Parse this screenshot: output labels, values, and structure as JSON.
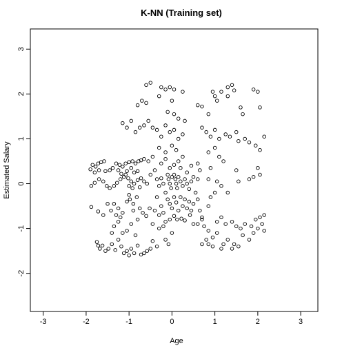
{
  "chart_data": {
    "type": "scatter",
    "title": "K-NN (Training set)",
    "xlabel": "Age",
    "ylabel": "Estimated Salary",
    "xlim": [
      -3.3,
      3.4
    ],
    "ylim": [
      -2.85,
      3.45
    ],
    "xticks": [
      -3,
      -2,
      -1,
      0,
      1,
      2,
      3
    ],
    "yticks": [
      -2,
      -1,
      0,
      1,
      2,
      3
    ],
    "xtick_labels": [
      "-3",
      "-2",
      "-1",
      "0",
      "1",
      "2",
      "3"
    ],
    "ytick_labels": [
      "-2",
      "-1",
      "0",
      "1",
      "2",
      "3"
    ],
    "grid": false,
    "marker": "open-circle",
    "points": [
      [
        -1.85,
        0.42
      ],
      [
        -1.78,
        0.38
      ],
      [
        -1.72,
        0.45
      ],
      [
        -1.65,
        0.48
      ],
      [
        -1.58,
        0.5
      ],
      [
        -1.9,
        0.32
      ],
      [
        -1.8,
        0.25
      ],
      [
        -1.7,
        0.3
      ],
      [
        -1.55,
        0.28
      ],
      [
        -1.45,
        0.3
      ],
      [
        -1.38,
        0.35
      ],
      [
        -1.3,
        0.45
      ],
      [
        -1.22,
        0.42
      ],
      [
        -1.15,
        0.38
      ],
      [
        -1.08,
        0.45
      ],
      [
        -1.0,
        0.48
      ],
      [
        -0.92,
        0.5
      ],
      [
        -0.85,
        0.45
      ],
      [
        -0.78,
        0.5
      ],
      [
        -0.72,
        0.52
      ],
      [
        -1.25,
        0.3
      ],
      [
        -1.18,
        0.22
      ],
      [
        -1.05,
        0.28
      ],
      [
        -0.95,
        0.35
      ],
      [
        -0.88,
        0.25
      ],
      [
        -0.8,
        0.28
      ],
      [
        -1.88,
        -0.05
      ],
      [
        -1.8,
        0.02
      ],
      [
        -1.7,
        0.1
      ],
      [
        -1.6,
        0.05
      ],
      [
        -1.52,
        -0.05
      ],
      [
        -1.45,
        -0.1
      ],
      [
        -1.35,
        -0.05
      ],
      [
        -1.28,
        0.02
      ],
      [
        -1.2,
        0.1
      ],
      [
        -1.12,
        0.15
      ],
      [
        -1.02,
        0.12
      ],
      [
        -0.95,
        0.05
      ],
      [
        -0.88,
        0.0
      ],
      [
        -0.8,
        0.08
      ],
      [
        -0.72,
        0.12
      ],
      [
        -0.65,
        0.05
      ],
      [
        -0.58,
        0.0
      ],
      [
        -0.92,
        -0.1
      ],
      [
        -1.0,
        -0.05
      ],
      [
        -1.08,
        0.2
      ],
      [
        -0.75,
        -0.08
      ],
      [
        -1.88,
        -0.52
      ],
      [
        -1.72,
        -0.62
      ],
      [
        -1.6,
        -0.7
      ],
      [
        -1.5,
        -0.45
      ],
      [
        -1.42,
        -0.6
      ],
      [
        -1.35,
        -0.45
      ],
      [
        -1.25,
        -0.55
      ],
      [
        -1.15,
        -0.65
      ],
      [
        -1.05,
        -0.4
      ],
      [
        -0.98,
        -0.35
      ],
      [
        -0.9,
        -0.45
      ],
      [
        -0.82,
        -0.3
      ],
      [
        -0.75,
        -0.55
      ],
      [
        -0.68,
        -0.65
      ],
      [
        -0.6,
        -0.72
      ],
      [
        -0.52,
        -0.55
      ],
      [
        -1.75,
        -1.3
      ],
      [
        -1.72,
        -1.38
      ],
      [
        -1.68,
        -1.45
      ],
      [
        -1.62,
        -1.38
      ],
      [
        -1.55,
        -1.5
      ],
      [
        -1.48,
        -1.45
      ],
      [
        -1.4,
        -1.35
      ],
      [
        -1.32,
        -1.48
      ],
      [
        -1.25,
        -1.25
      ],
      [
        -1.18,
        -1.4
      ],
      [
        -1.12,
        -1.55
      ],
      [
        -1.05,
        -1.5
      ],
      [
        -1.0,
        -1.6
      ],
      [
        -0.95,
        -1.45
      ],
      [
        -0.88,
        -1.55
      ],
      [
        -0.8,
        -1.38
      ],
      [
        -0.72,
        -1.58
      ],
      [
        -0.65,
        -1.55
      ],
      [
        -0.58,
        -1.5
      ],
      [
        -0.5,
        -1.45
      ],
      [
        -0.45,
        -1.28
      ],
      [
        -0.35,
        -1.4
      ],
      [
        -1.35,
        -0.95
      ],
      [
        -1.25,
        -0.85
      ],
      [
        -1.15,
        -1.1
      ],
      [
        -1.05,
        -1.05
      ],
      [
        -0.95,
        -0.9
      ],
      [
        -0.85,
        -1.15
      ],
      [
        -1.4,
        -1.1
      ],
      [
        -0.3,
        -1.0
      ],
      [
        -0.2,
        -0.95
      ],
      [
        -0.15,
        -1.25
      ],
      [
        -0.08,
        -1.35
      ],
      [
        0.0,
        -1.1
      ],
      [
        -0.1,
        0.2
      ],
      [
        -0.08,
        0.1
      ],
      [
        -0.05,
        0.0
      ],
      [
        -0.02,
        -0.1
      ],
      [
        0.0,
        0.15
      ],
      [
        0.05,
        0.2
      ],
      [
        0.08,
        0.1
      ],
      [
        0.1,
        0.0
      ],
      [
        0.12,
        -0.1
      ],
      [
        0.15,
        0.15
      ],
      [
        0.2,
        0.05
      ],
      [
        0.25,
        -0.05
      ],
      [
        0.3,
        0.1
      ],
      [
        0.35,
        0.0
      ],
      [
        0.4,
        -0.12
      ],
      [
        0.45,
        0.05
      ],
      [
        0.5,
        0.15
      ],
      [
        -0.2,
        0.0
      ],
      [
        -0.25,
        0.12
      ],
      [
        -0.3,
        -0.05
      ],
      [
        -0.35,
        0.1
      ],
      [
        -0.15,
        -0.2
      ],
      [
        -0.1,
        -0.35
      ],
      [
        -0.05,
        -0.45
      ],
      [
        0.0,
        -0.55
      ],
      [
        0.05,
        -0.3
      ],
      [
        0.1,
        -0.42
      ],
      [
        0.15,
        -0.6
      ],
      [
        0.2,
        -0.3
      ],
      [
        0.25,
        -0.5
      ],
      [
        0.3,
        -0.35
      ],
      [
        0.35,
        -0.55
      ],
      [
        0.4,
        -0.4
      ],
      [
        0.45,
        -0.6
      ],
      [
        0.5,
        -0.45
      ],
      [
        -0.25,
        -0.5
      ],
      [
        -0.3,
        -0.7
      ],
      [
        -0.2,
        -0.65
      ],
      [
        -0.15,
        -0.85
      ],
      [
        -0.05,
        -0.8
      ],
      [
        0.05,
        -0.72
      ],
      [
        0.12,
        -0.8
      ],
      [
        0.22,
        -0.78
      ],
      [
        0.3,
        -0.82
      ],
      [
        0.42,
        -0.7
      ],
      [
        0.5,
        -0.9
      ],
      [
        -0.05,
        0.35
      ],
      [
        0.05,
        0.42
      ],
      [
        0.15,
        0.5
      ],
      [
        -0.15,
        0.55
      ],
      [
        -0.25,
        0.45
      ],
      [
        0.25,
        0.6
      ],
      [
        -0.35,
        1.2
      ],
      [
        -0.25,
        1.05
      ],
      [
        -0.15,
        1.3
      ],
      [
        -0.05,
        1.15
      ],
      [
        0.05,
        1.2
      ],
      [
        0.15,
        1.0
      ],
      [
        0.25,
        1.1
      ],
      [
        -0.45,
        1.25
      ],
      [
        -0.55,
        1.4
      ],
      [
        -0.65,
        1.3
      ],
      [
        -0.75,
        1.25
      ],
      [
        -0.85,
        1.15
      ],
      [
        -0.95,
        1.4
      ],
      [
        -1.05,
        1.25
      ],
      [
        -1.15,
        1.35
      ],
      [
        -0.3,
        0.8
      ],
      [
        -0.15,
        0.7
      ],
      [
        0.0,
        0.85
      ],
      [
        0.1,
        0.75
      ],
      [
        -0.6,
        2.2
      ],
      [
        -0.5,
        2.25
      ],
      [
        -0.25,
        2.15
      ],
      [
        -0.15,
        2.1
      ],
      [
        -0.05,
        2.15
      ],
      [
        0.05,
        2.1
      ],
      [
        0.0,
        1.85
      ],
      [
        0.25,
        2.05
      ],
      [
        -0.7,
        1.85
      ],
      [
        -0.6,
        1.8
      ],
      [
        -0.8,
        1.75
      ],
      [
        -0.3,
        1.95
      ],
      [
        -0.1,
        1.6
      ],
      [
        0.05,
        1.55
      ],
      [
        0.15,
        1.45
      ],
      [
        0.3,
        1.4
      ],
      [
        0.6,
        1.75
      ],
      [
        0.7,
        1.72
      ],
      [
        0.85,
        1.55
      ],
      [
        0.95,
        2.05
      ],
      [
        1.0,
        1.95
      ],
      [
        1.05,
        1.85
      ],
      [
        1.15,
        2.05
      ],
      [
        1.3,
        2.15
      ],
      [
        1.4,
        2.2
      ],
      [
        1.45,
        2.08
      ],
      [
        1.3,
        1.95
      ],
      [
        1.6,
        1.7
      ],
      [
        1.65,
        1.55
      ],
      [
        1.9,
        2.1
      ],
      [
        2.0,
        2.05
      ],
      [
        2.05,
        1.7
      ],
      [
        0.7,
        1.25
      ],
      [
        0.8,
        1.15
      ],
      [
        0.9,
        1.05
      ],
      [
        1.0,
        1.2
      ],
      [
        1.1,
        1.0
      ],
      [
        1.25,
        1.1
      ],
      [
        1.35,
        1.05
      ],
      [
        1.5,
        1.15
      ],
      [
        1.55,
        0.95
      ],
      [
        1.7,
        1.0
      ],
      [
        1.8,
        0.92
      ],
      [
        1.95,
        0.85
      ],
      [
        2.05,
        0.75
      ],
      [
        2.15,
        1.05
      ],
      [
        0.85,
        0.7
      ],
      [
        1.0,
        0.8
      ],
      [
        1.1,
        0.6
      ],
      [
        1.2,
        0.5
      ],
      [
        1.5,
        0.3
      ],
      [
        1.55,
        0.05
      ],
      [
        1.8,
        0.1
      ],
      [
        1.9,
        0.15
      ],
      [
        2.0,
        0.35
      ],
      [
        2.05,
        0.2
      ],
      [
        0.85,
        0.1
      ],
      [
        1.05,
        0.05
      ],
      [
        1.15,
        -0.05
      ],
      [
        1.3,
        -0.2
      ],
      [
        0.9,
        -0.3
      ],
      [
        1.0,
        -0.2
      ],
      [
        0.85,
        -0.5
      ],
      [
        1.05,
        -0.85
      ],
      [
        1.15,
        -0.75
      ],
      [
        1.25,
        -0.9
      ],
      [
        1.4,
        -0.85
      ],
      [
        1.5,
        -0.95
      ],
      [
        1.6,
        -1.0
      ],
      [
        1.7,
        -0.9
      ],
      [
        1.85,
        -0.95
      ],
      [
        1.95,
        -0.8
      ],
      [
        2.05,
        -0.75
      ],
      [
        2.15,
        -0.7
      ],
      [
        0.6,
        -0.9
      ],
      [
        0.7,
        -0.8
      ],
      [
        0.75,
        -0.95
      ],
      [
        0.85,
        -1.05
      ],
      [
        0.95,
        -1.2
      ],
      [
        1.05,
        -1.1
      ],
      [
        1.2,
        -1.35
      ],
      [
        1.3,
        -1.25
      ],
      [
        1.4,
        -1.45
      ],
      [
        1.55,
        -1.4
      ],
      [
        1.65,
        -1.15
      ],
      [
        1.8,
        -1.25
      ],
      [
        1.9,
        -1.1
      ],
      [
        2.0,
        -1.0
      ],
      [
        2.1,
        -0.9
      ],
      [
        2.15,
        -1.05
      ],
      [
        0.7,
        -1.35
      ],
      [
        0.8,
        -1.25
      ],
      [
        0.85,
        -1.35
      ],
      [
        0.95,
        -1.4
      ],
      [
        1.15,
        -1.45
      ],
      [
        1.45,
        -1.35
      ],
      [
        0.9,
        0.35
      ],
      [
        0.6,
        0.45
      ],
      [
        0.65,
        0.3
      ],
      [
        0.6,
        0.1
      ],
      [
        0.55,
        -0.2
      ],
      [
        0.6,
        -0.35
      ],
      [
        0.65,
        -0.6
      ],
      [
        0.7,
        -0.75
      ],
      [
        -0.45,
        -0.9
      ],
      [
        -0.4,
        -0.6
      ],
      [
        -0.35,
        -0.3
      ],
      [
        -0.4,
        0.3
      ],
      [
        -0.5,
        0.2
      ],
      [
        -0.45,
        0.6
      ],
      [
        -0.55,
        0.5
      ],
      [
        -0.65,
        0.55
      ],
      [
        0.2,
        0.35
      ],
      [
        0.35,
        0.25
      ],
      [
        0.45,
        0.4
      ],
      [
        -1.0,
        -0.25
      ],
      [
        -0.9,
        -0.6
      ],
      [
        -0.8,
        -0.8
      ],
      [
        -1.2,
        -0.75
      ],
      [
        -1.3,
        -0.7
      ]
    ]
  }
}
